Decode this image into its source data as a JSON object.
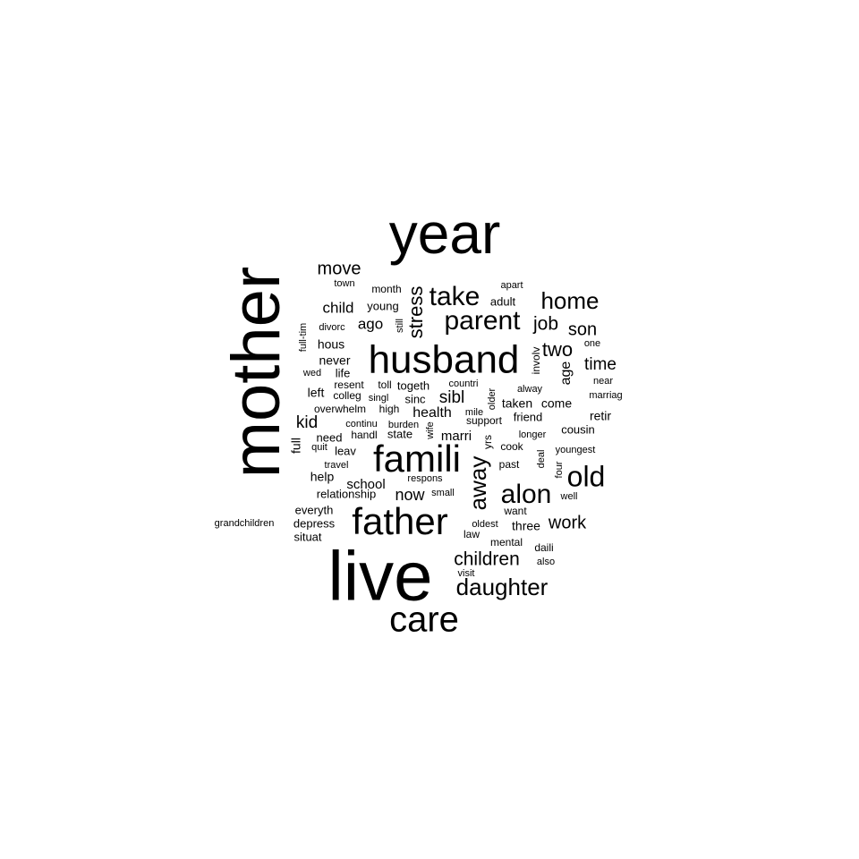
{
  "word_cloud": {
    "words": [
      {
        "text": "mother",
        "weight": 100
      },
      {
        "text": "year",
        "weight": 70
      },
      {
        "text": "live",
        "weight": 85
      },
      {
        "text": "husband",
        "weight": 48
      },
      {
        "text": "father",
        "weight": 46
      },
      {
        "text": "famili",
        "weight": 44
      },
      {
        "text": "care",
        "weight": 40
      },
      {
        "text": "parent",
        "weight": 32
      },
      {
        "text": "take",
        "weight": 31
      },
      {
        "text": "alon",
        "weight": 30
      },
      {
        "text": "old",
        "weight": 31
      },
      {
        "text": "away",
        "weight": 28
      },
      {
        "text": "stress",
        "weight": 24
      },
      {
        "text": "daughter",
        "weight": 26
      },
      {
        "text": "home",
        "weight": 27
      },
      {
        "text": "children",
        "weight": 22
      },
      {
        "text": "move",
        "weight": 20
      },
      {
        "text": "two",
        "weight": 22
      },
      {
        "text": "job",
        "weight": 21
      },
      {
        "text": "son",
        "weight": 20
      },
      {
        "text": "time",
        "weight": 19
      },
      {
        "text": "work",
        "weight": 20
      },
      {
        "text": "sibl",
        "weight": 19
      },
      {
        "text": "kid",
        "weight": 19
      },
      {
        "text": "now",
        "weight": 18
      },
      {
        "text": "child",
        "weight": 17
      },
      {
        "text": "ago",
        "weight": 17
      },
      {
        "text": "age",
        "weight": 16
      },
      {
        "text": "health",
        "weight": 16
      },
      {
        "text": "marri",
        "weight": 15
      },
      {
        "text": "school",
        "weight": 15
      },
      {
        "text": "full",
        "weight": 14
      },
      {
        "text": "retir",
        "weight": 14
      },
      {
        "text": "help",
        "weight": 14
      },
      {
        "text": "hous",
        "weight": 14
      },
      {
        "text": "never",
        "weight": 14
      },
      {
        "text": "left",
        "weight": 14
      },
      {
        "text": "three",
        "weight": 14
      },
      {
        "text": "come",
        "weight": 14
      },
      {
        "text": "taken",
        "weight": 13
      },
      {
        "text": "cousin",
        "weight": 13
      },
      {
        "text": "friend",
        "weight": 13
      },
      {
        "text": "relationship",
        "weight": 13
      },
      {
        "text": "everyth",
        "weight": 13
      },
      {
        "text": "depress",
        "weight": 13
      },
      {
        "text": "situat",
        "weight": 13
      },
      {
        "text": "state",
        "weight": 13
      },
      {
        "text": "life",
        "weight": 13
      },
      {
        "text": "togeth",
        "weight": 13
      },
      {
        "text": "sinc",
        "weight": 13
      },
      {
        "text": "need",
        "weight": 13
      },
      {
        "text": "leav",
        "weight": 13
      },
      {
        "text": "adult",
        "weight": 13
      },
      {
        "text": "young",
        "weight": 13
      },
      {
        "text": "mental",
        "weight": 12
      },
      {
        "text": "daili",
        "weight": 12
      },
      {
        "text": "past",
        "weight": 12
      },
      {
        "text": "cook",
        "weight": 12
      },
      {
        "text": "law",
        "weight": 12
      },
      {
        "text": "yrs",
        "weight": 12
      },
      {
        "text": "want",
        "weight": 12
      },
      {
        "text": "involv",
        "weight": 12
      },
      {
        "text": "month",
        "weight": 12
      },
      {
        "text": "overwhelm",
        "weight": 12
      },
      {
        "text": "high",
        "weight": 12
      },
      {
        "text": "support",
        "weight": 12
      },
      {
        "text": "colleg",
        "weight": 12
      },
      {
        "text": "resent",
        "weight": 12
      },
      {
        "text": "toll",
        "weight": 12
      },
      {
        "text": "handl",
        "weight": 12
      },
      {
        "text": "travel",
        "weight": 11
      },
      {
        "text": "grandchildren",
        "weight": 11
      },
      {
        "text": "town",
        "weight": 11
      },
      {
        "text": "apart",
        "weight": 11
      },
      {
        "text": "divorc",
        "weight": 11
      },
      {
        "text": "still",
        "weight": 11
      },
      {
        "text": "full-tim",
        "weight": 11
      },
      {
        "text": "wed",
        "weight": 11
      },
      {
        "text": "one",
        "weight": 11
      },
      {
        "text": "near",
        "weight": 11
      },
      {
        "text": "marriag",
        "weight": 11
      },
      {
        "text": "alway",
        "weight": 11
      },
      {
        "text": "older",
        "weight": 11
      },
      {
        "text": "countri",
        "weight": 11
      },
      {
        "text": "singl",
        "weight": 11
      },
      {
        "text": "burden",
        "weight": 11
      },
      {
        "text": "continu",
        "weight": 11
      },
      {
        "text": "mile",
        "weight": 11
      },
      {
        "text": "wife",
        "weight": 11
      },
      {
        "text": "longer",
        "weight": 11
      },
      {
        "text": "youngest",
        "weight": 11
      },
      {
        "text": "deal",
        "weight": 11
      },
      {
        "text": "four",
        "weight": 11
      },
      {
        "text": "respons",
        "weight": 11
      },
      {
        "text": "small",
        "weight": 11
      },
      {
        "text": "well",
        "weight": 11
      },
      {
        "text": "oldest",
        "weight": 11
      },
      {
        "text": "quit",
        "weight": 11
      },
      {
        "text": "visit",
        "weight": 11
      },
      {
        "text": "also",
        "weight": 11
      }
    ]
  }
}
